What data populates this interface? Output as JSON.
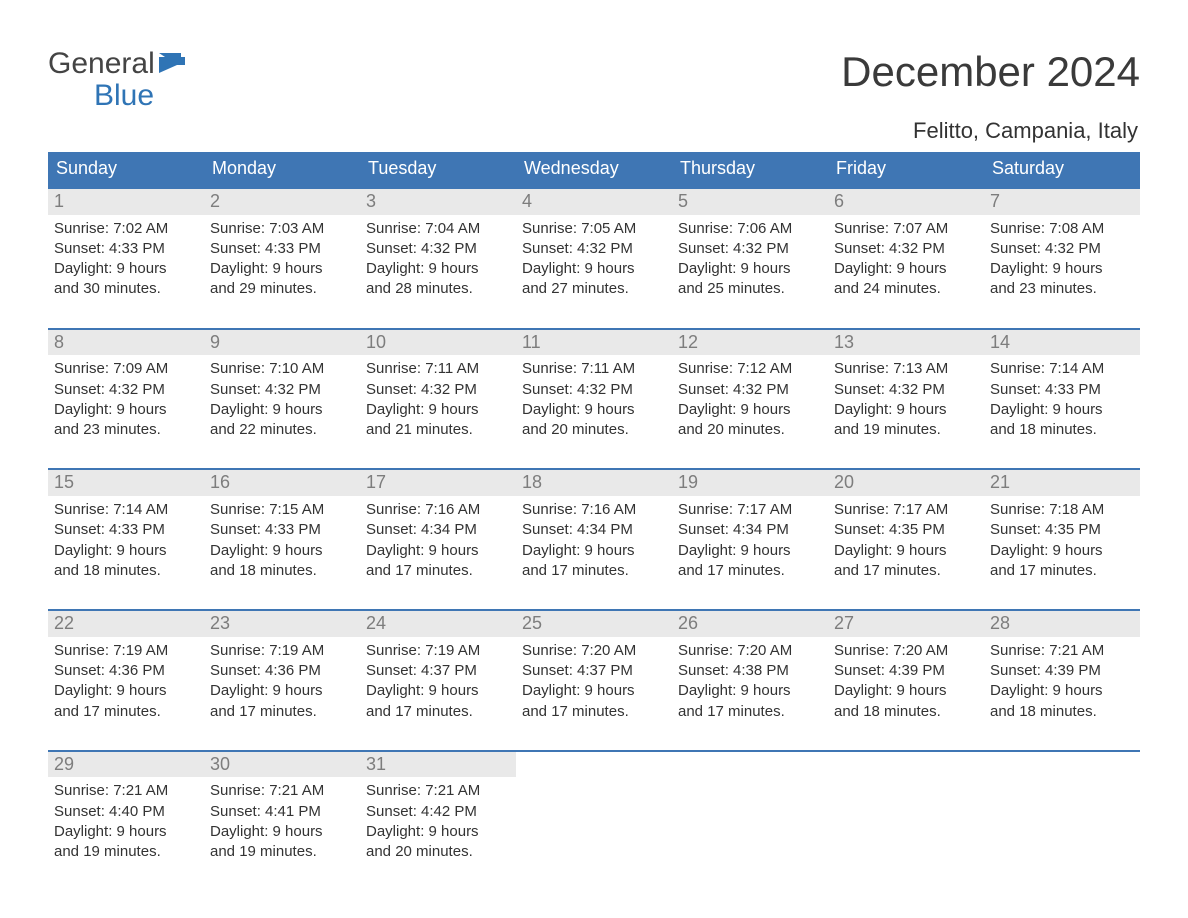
{
  "logo": {
    "line1": "General",
    "line2": "Blue"
  },
  "title": "December 2024",
  "location": "Felitto, Campania, Italy",
  "colors": {
    "header_bg": "#3f76b4",
    "header_text": "#ffffff",
    "week_border": "#3f76b4",
    "daynum_bg": "#e9e9e9",
    "daynum_text": "#7d7d7d",
    "body_text": "#333333",
    "logo_blue": "#2f74b5",
    "background": "#ffffff"
  },
  "typography": {
    "title_fontsize": 42,
    "location_fontsize": 22,
    "header_fontsize": 18,
    "daynum_fontsize": 18,
    "body_fontsize": 15,
    "logo_fontsize": 30
  },
  "day_headers": [
    "Sunday",
    "Monday",
    "Tuesday",
    "Wednesday",
    "Thursday",
    "Friday",
    "Saturday"
  ],
  "weeks": [
    [
      {
        "n": "1",
        "sunrise": "Sunrise: 7:02 AM",
        "sunset": "Sunset: 4:33 PM",
        "d1": "Daylight: 9 hours",
        "d2": "and 30 minutes."
      },
      {
        "n": "2",
        "sunrise": "Sunrise: 7:03 AM",
        "sunset": "Sunset: 4:33 PM",
        "d1": "Daylight: 9 hours",
        "d2": "and 29 minutes."
      },
      {
        "n": "3",
        "sunrise": "Sunrise: 7:04 AM",
        "sunset": "Sunset: 4:32 PM",
        "d1": "Daylight: 9 hours",
        "d2": "and 28 minutes."
      },
      {
        "n": "4",
        "sunrise": "Sunrise: 7:05 AM",
        "sunset": "Sunset: 4:32 PM",
        "d1": "Daylight: 9 hours",
        "d2": "and 27 minutes."
      },
      {
        "n": "5",
        "sunrise": "Sunrise: 7:06 AM",
        "sunset": "Sunset: 4:32 PM",
        "d1": "Daylight: 9 hours",
        "d2": "and 25 minutes."
      },
      {
        "n": "6",
        "sunrise": "Sunrise: 7:07 AM",
        "sunset": "Sunset: 4:32 PM",
        "d1": "Daylight: 9 hours",
        "d2": "and 24 minutes."
      },
      {
        "n": "7",
        "sunrise": "Sunrise: 7:08 AM",
        "sunset": "Sunset: 4:32 PM",
        "d1": "Daylight: 9 hours",
        "d2": "and 23 minutes."
      }
    ],
    [
      {
        "n": "8",
        "sunrise": "Sunrise: 7:09 AM",
        "sunset": "Sunset: 4:32 PM",
        "d1": "Daylight: 9 hours",
        "d2": "and 23 minutes."
      },
      {
        "n": "9",
        "sunrise": "Sunrise: 7:10 AM",
        "sunset": "Sunset: 4:32 PM",
        "d1": "Daylight: 9 hours",
        "d2": "and 22 minutes."
      },
      {
        "n": "10",
        "sunrise": "Sunrise: 7:11 AM",
        "sunset": "Sunset: 4:32 PM",
        "d1": "Daylight: 9 hours",
        "d2": "and 21 minutes."
      },
      {
        "n": "11",
        "sunrise": "Sunrise: 7:11 AM",
        "sunset": "Sunset: 4:32 PM",
        "d1": "Daylight: 9 hours",
        "d2": "and 20 minutes."
      },
      {
        "n": "12",
        "sunrise": "Sunrise: 7:12 AM",
        "sunset": "Sunset: 4:32 PM",
        "d1": "Daylight: 9 hours",
        "d2": "and 20 minutes."
      },
      {
        "n": "13",
        "sunrise": "Sunrise: 7:13 AM",
        "sunset": "Sunset: 4:32 PM",
        "d1": "Daylight: 9 hours",
        "d2": "and 19 minutes."
      },
      {
        "n": "14",
        "sunrise": "Sunrise: 7:14 AM",
        "sunset": "Sunset: 4:33 PM",
        "d1": "Daylight: 9 hours",
        "d2": "and 18 minutes."
      }
    ],
    [
      {
        "n": "15",
        "sunrise": "Sunrise: 7:14 AM",
        "sunset": "Sunset: 4:33 PM",
        "d1": "Daylight: 9 hours",
        "d2": "and 18 minutes."
      },
      {
        "n": "16",
        "sunrise": "Sunrise: 7:15 AM",
        "sunset": "Sunset: 4:33 PM",
        "d1": "Daylight: 9 hours",
        "d2": "and 18 minutes."
      },
      {
        "n": "17",
        "sunrise": "Sunrise: 7:16 AM",
        "sunset": "Sunset: 4:34 PM",
        "d1": "Daylight: 9 hours",
        "d2": "and 17 minutes."
      },
      {
        "n": "18",
        "sunrise": "Sunrise: 7:16 AM",
        "sunset": "Sunset: 4:34 PM",
        "d1": "Daylight: 9 hours",
        "d2": "and 17 minutes."
      },
      {
        "n": "19",
        "sunrise": "Sunrise: 7:17 AM",
        "sunset": "Sunset: 4:34 PM",
        "d1": "Daylight: 9 hours",
        "d2": "and 17 minutes."
      },
      {
        "n": "20",
        "sunrise": "Sunrise: 7:17 AM",
        "sunset": "Sunset: 4:35 PM",
        "d1": "Daylight: 9 hours",
        "d2": "and 17 minutes."
      },
      {
        "n": "21",
        "sunrise": "Sunrise: 7:18 AM",
        "sunset": "Sunset: 4:35 PM",
        "d1": "Daylight: 9 hours",
        "d2": "and 17 minutes."
      }
    ],
    [
      {
        "n": "22",
        "sunrise": "Sunrise: 7:19 AM",
        "sunset": "Sunset: 4:36 PM",
        "d1": "Daylight: 9 hours",
        "d2": "and 17 minutes."
      },
      {
        "n": "23",
        "sunrise": "Sunrise: 7:19 AM",
        "sunset": "Sunset: 4:36 PM",
        "d1": "Daylight: 9 hours",
        "d2": "and 17 minutes."
      },
      {
        "n": "24",
        "sunrise": "Sunrise: 7:19 AM",
        "sunset": "Sunset: 4:37 PM",
        "d1": "Daylight: 9 hours",
        "d2": "and 17 minutes."
      },
      {
        "n": "25",
        "sunrise": "Sunrise: 7:20 AM",
        "sunset": "Sunset: 4:37 PM",
        "d1": "Daylight: 9 hours",
        "d2": "and 17 minutes."
      },
      {
        "n": "26",
        "sunrise": "Sunrise: 7:20 AM",
        "sunset": "Sunset: 4:38 PM",
        "d1": "Daylight: 9 hours",
        "d2": "and 17 minutes."
      },
      {
        "n": "27",
        "sunrise": "Sunrise: 7:20 AM",
        "sunset": "Sunset: 4:39 PM",
        "d1": "Daylight: 9 hours",
        "d2": "and 18 minutes."
      },
      {
        "n": "28",
        "sunrise": "Sunrise: 7:21 AM",
        "sunset": "Sunset: 4:39 PM",
        "d1": "Daylight: 9 hours",
        "d2": "and 18 minutes."
      }
    ],
    [
      {
        "n": "29",
        "sunrise": "Sunrise: 7:21 AM",
        "sunset": "Sunset: 4:40 PM",
        "d1": "Daylight: 9 hours",
        "d2": "and 19 minutes."
      },
      {
        "n": "30",
        "sunrise": "Sunrise: 7:21 AM",
        "sunset": "Sunset: 4:41 PM",
        "d1": "Daylight: 9 hours",
        "d2": "and 19 minutes."
      },
      {
        "n": "31",
        "sunrise": "Sunrise: 7:21 AM",
        "sunset": "Sunset: 4:42 PM",
        "d1": "Daylight: 9 hours",
        "d2": "and 20 minutes."
      },
      {
        "empty": true
      },
      {
        "empty": true
      },
      {
        "empty": true
      },
      {
        "empty": true
      }
    ]
  ]
}
